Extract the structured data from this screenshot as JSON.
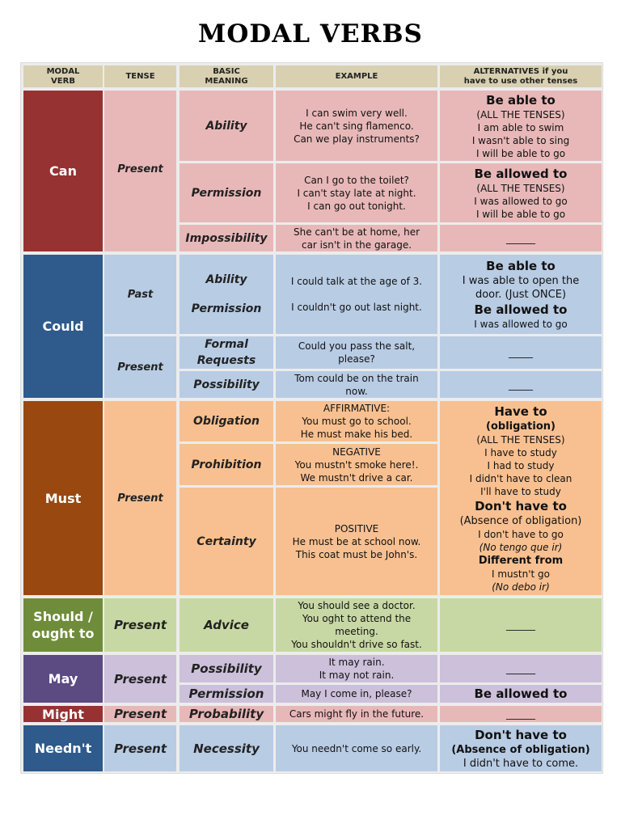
{
  "title": "MODAL VERBS",
  "header": {
    "modal_verb": [
      "MODAL",
      "VERB"
    ],
    "tense": "TENSE",
    "basic_meaning": [
      "BASIC",
      "MEANING"
    ],
    "example": "EXAMPLE",
    "alternatives": [
      "ALTERNATIVES if you",
      "have to use other tenses"
    ]
  },
  "colors": {
    "header": "#d8d0b0",
    "can_dark": "#963232",
    "can_light": "#e8b8b8",
    "could_dark": "#2e5a8c",
    "could_light": "#b8cce4",
    "must_dark": "#99480f",
    "must_light": "#f8c090",
    "should_dark": "#6f8c3a",
    "should_light": "#c8d8a4",
    "may_dark": "#5c4a82",
    "may_light": "#ccc0da",
    "might_dark": "#963232",
    "might_light": "#e8b8b8",
    "neednt_dark": "#2e5a8c",
    "neednt_light": "#b8cce4"
  },
  "can": {
    "verb": "Can",
    "tense": "Present",
    "ability": {
      "meaning": "Ability",
      "example": [
        "I can swim very well.",
        "He can't sing flamenco.",
        "Can we play instruments?"
      ],
      "alt": [
        "Be able to",
        "(ALL THE TENSES)",
        "I am able to swim",
        "I wasn't able to sing",
        "I will be able to go"
      ]
    },
    "permission": {
      "meaning": "Permission",
      "example": [
        "Can I go to the toilet?",
        "I can't stay late at night.",
        "I can go out tonight."
      ],
      "alt": [
        "Be allowed to",
        "(ALL THE TENSES)",
        "I was allowed to go",
        "I will be able to go"
      ]
    },
    "impossibility": {
      "meaning": "Impossibility",
      "example": [
        "She can't be at home, her",
        "car isn't in the garage."
      ],
      "alt": "______"
    }
  },
  "could": {
    "verb": "Could",
    "past_tense": "Past",
    "past_meanings": [
      "Ability",
      "Permission"
    ],
    "past_examples": [
      "I could talk at the age of 3.",
      "I couldn't go out last night."
    ],
    "past_alt": [
      "Be able to",
      "I was able to open the",
      "door. (Just ONCE)",
      "Be allowed to",
      "I was allowed to go"
    ],
    "present_tense": "Present",
    "formal": {
      "meaning": [
        "Formal",
        "Requests"
      ],
      "example": [
        "Could you pass the salt,",
        "please?"
      ],
      "alt": "_____"
    },
    "possibility": {
      "meaning": "Possibility",
      "example": [
        "Tom could be on the train",
        "now."
      ],
      "alt": "_____"
    }
  },
  "must": {
    "verb": "Must",
    "tense": "Present",
    "obligation": {
      "meaning": "Obligation",
      "example": [
        "AFFIRMATIVE:",
        "You must go to school.",
        "He must make his bed."
      ]
    },
    "prohibition": {
      "meaning": "Prohibition",
      "example": [
        "NEGATIVE",
        "You mustn't smoke here!.",
        "We mustn't drive a car."
      ]
    },
    "certainty": {
      "meaning": "Certainty",
      "example": [
        "POSITIVE",
        "He must be at school now.",
        "This coat must be John's."
      ]
    },
    "alt": {
      "have_to": "Have to",
      "obligation": "(obligation)",
      "all_tenses": "(ALL THE TENSES)",
      "have_examples": [
        "I have to study",
        "I had to study",
        "I didn't have to clean",
        "I'll have to study"
      ],
      "dont_have_to": "Don't have to",
      "absence": "(Absence of obligation)",
      "dont_example": "I don't have to go",
      "no_tengo": "(No tengo que ir)",
      "different_from": "Different from",
      "mustnt_go": "I mustn't go",
      "no_debo": "(No debo ir)"
    }
  },
  "should": {
    "verb": [
      "Should /",
      "ought to"
    ],
    "tense": "Present",
    "meaning": "Advice",
    "example": [
      "You should see a doctor.",
      "You oght to attend the",
      "meeting.",
      "You shouldn't drive so fast."
    ],
    "alt": "______"
  },
  "may": {
    "verb": "May",
    "tense": "Present",
    "possibility": {
      "meaning": "Possibility",
      "example": [
        "It may rain.",
        "It may not rain."
      ],
      "alt": "______"
    },
    "permission": {
      "meaning": "Permission",
      "example": "May I come in, please?",
      "alt": "Be allowed to"
    }
  },
  "might": {
    "verb": "Might",
    "tense": "Present",
    "meaning": "Probability",
    "example": "Cars might fly in the future.",
    "alt": "______"
  },
  "neednt": {
    "verb": "Needn't",
    "tense": "Present",
    "meaning": "Necessity",
    "example": "You needn't come so early.",
    "alt": [
      "Don't have to",
      "(Absence of obligation)",
      "I didn't have to come."
    ]
  }
}
